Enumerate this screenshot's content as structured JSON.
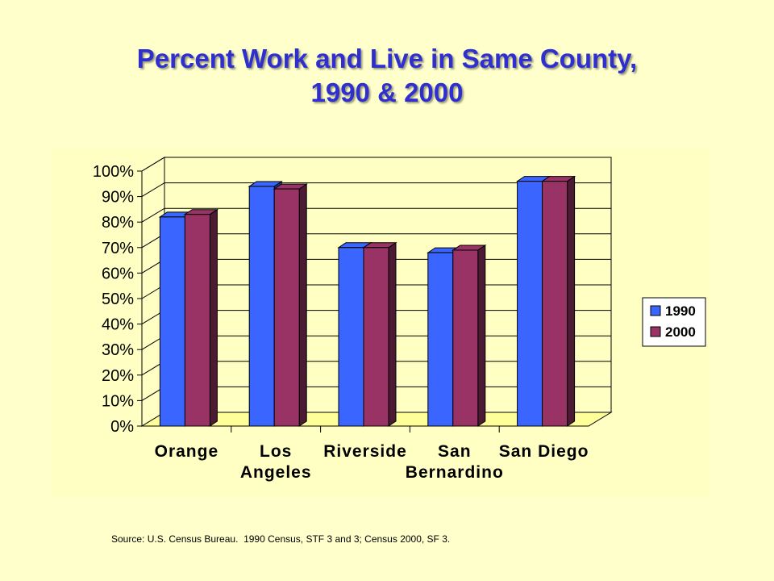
{
  "title_line1": "Percent Work and Live in Same County,",
  "title_line2": "1990 & 2000",
  "source": "Source: U.S. Census Bureau.  1990 Census, STF 3 and 3; Census 2000, SF 3.",
  "chart_data": {
    "type": "bar",
    "categories": [
      [
        "Orange"
      ],
      [
        "Los",
        "Angeles"
      ],
      [
        "Riverside"
      ],
      [
        "San",
        "Bernardino"
      ],
      [
        "San Diego"
      ]
    ],
    "series": [
      {
        "name": "1990",
        "values": [
          82,
          94,
          70,
          68,
          96
        ],
        "color": "#3A66FF",
        "dark": "#1D3A9E"
      },
      {
        "name": "2000",
        "values": [
          83,
          93,
          70,
          69,
          96
        ],
        "color": "#993366",
        "dark": "#4D1A33"
      }
    ],
    "y_ticks": [
      "0%",
      "10%",
      "20%",
      "30%",
      "40%",
      "50%",
      "60%",
      "70%",
      "80%",
      "90%",
      "100%"
    ],
    "ylim": [
      0,
      100
    ],
    "grid": true,
    "legend_position": "right",
    "floor_color": "#FFFF99"
  }
}
